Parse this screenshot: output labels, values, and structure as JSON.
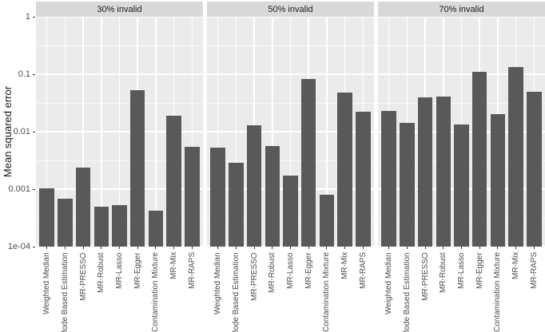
{
  "chart_data": {
    "type": "bar",
    "title": "",
    "xlabel": "",
    "ylabel": "Mean squared error",
    "yscale": "log10",
    "ylim": [
      0.0001,
      1
    ],
    "yticks": [
      {
        "value": 1,
        "label": "1"
      },
      {
        "value": 0.1,
        "label": "0.1"
      },
      {
        "value": 0.01,
        "label": "0.01"
      },
      {
        "value": 0.001,
        "label": "0.001"
      },
      {
        "value": 0.0001,
        "label": "1e-04"
      }
    ],
    "grid": "white major and minor horizontal lines, white vertical lines at category centers",
    "legend_position": "none",
    "categories": [
      "Weighted Median",
      "Mode Based Estimation",
      "MR-PRESSO",
      "MR-Robust",
      "MR-Lasso",
      "MR-Egger",
      "Contamination Mixture",
      "MR-Mix",
      "MR-RAPS"
    ],
    "facets": [
      {
        "label": "30% invalid",
        "values": [
          0.00102,
          0.00068,
          0.0024,
          0.0005,
          0.00053,
          0.052,
          0.00042,
          0.019,
          0.0054
        ]
      },
      {
        "label": "50% invalid",
        "values": [
          0.0053,
          0.0029,
          0.013,
          0.0056,
          0.0017,
          0.083,
          0.00079,
          0.048,
          0.022
        ]
      },
      {
        "label": "70% invalid",
        "values": [
          0.023,
          0.0143,
          0.04,
          0.041,
          0.0135,
          0.11,
          0.0205,
          0.135,
          0.0495
        ]
      }
    ],
    "colors": {
      "bar": "#595959",
      "panel_background": "#ebebeb",
      "strip_background": "#d9d9d9",
      "gridline": "#ffffff",
      "axis_text": "#4d4d4d",
      "strip_text": "#1a1a1a",
      "tick_mark": "#333333"
    }
  }
}
